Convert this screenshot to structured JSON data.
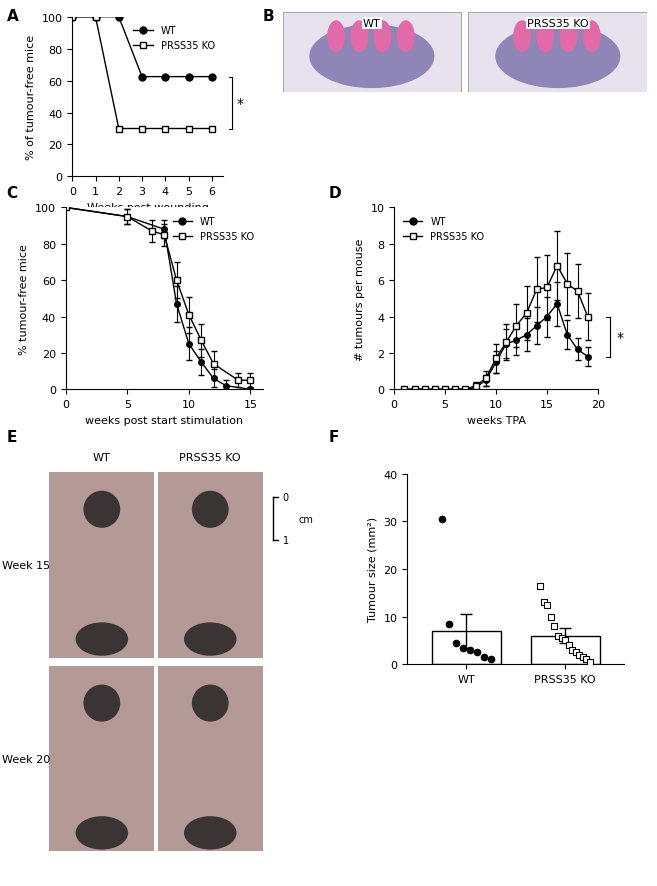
{
  "chart_data": [
    {
      "panel": "A",
      "type": "line",
      "xlabel": "Weeks post wounding",
      "ylabel": "% of tumour-free mice",
      "xlim": [
        0,
        6.5
      ],
      "ylim": [
        0,
        100
      ],
      "xticks": [
        0,
        1,
        2,
        3,
        4,
        5,
        6
      ],
      "yticks": [
        0,
        20,
        40,
        60,
        80,
        100
      ],
      "legend": "upper right",
      "annotations": [
        {
          "text": "*"
        }
      ],
      "series": [
        {
          "name": "WT",
          "color": "#000000",
          "marker": "filled circle",
          "x": [
            0,
            1,
            2,
            3,
            4,
            5,
            6
          ],
          "values": [
            100,
            100,
            100,
            62.5,
            62.5,
            62.5,
            62.5
          ]
        },
        {
          "name": "PRSS35 KO",
          "color": "#000000",
          "marker": "open square",
          "x": [
            0,
            1,
            2,
            3,
            4,
            5,
            6
          ],
          "values": [
            100,
            100,
            30,
            30,
            30,
            30,
            30
          ]
        }
      ]
    },
    {
      "panel": "C",
      "type": "line",
      "xlabel": "weeks post start stimulation",
      "ylabel": "% tumour-free mice",
      "xlim": [
        0,
        16
      ],
      "ylim": [
        0,
        100
      ],
      "xticks": [
        0,
        5,
        10,
        15
      ],
      "yticks": [
        0,
        20,
        40,
        60,
        80,
        100
      ],
      "legend": "upper right",
      "series": [
        {
          "name": "WT",
          "color": "#000000",
          "marker": "filled circle",
          "x": [
            0,
            5,
            8,
            9,
            10,
            11,
            12,
            13,
            15
          ],
          "values": [
            100,
            95,
            88,
            47,
            25,
            15,
            6,
            2,
            0
          ],
          "errors": [
            0,
            4,
            5,
            10,
            9,
            7,
            5,
            3,
            0
          ]
        },
        {
          "name": "PRSS35 KO",
          "color": "#000000",
          "marker": "open square",
          "x": [
            0,
            5,
            7,
            8,
            9,
            10,
            11,
            12,
            14,
            15
          ],
          "values": [
            100,
            95,
            87,
            85,
            60,
            41,
            27,
            14,
            5,
            5
          ],
          "errors": [
            0,
            4,
            6,
            6,
            10,
            10,
            9,
            7,
            4,
            4
          ]
        }
      ]
    },
    {
      "panel": "D",
      "type": "line",
      "xlabel": "weeks TPA",
      "ylabel": "# tumours per mouse",
      "xlim": [
        0,
        20
      ],
      "ylim": [
        0,
        10
      ],
      "xticks": [
        0,
        5,
        10,
        15,
        20
      ],
      "yticks": [
        0,
        2,
        4,
        6,
        8,
        10
      ],
      "legend": "upper left",
      "annotations": [
        {
          "text": "*"
        }
      ],
      "series": [
        {
          "name": "WT",
          "color": "#000000",
          "marker": "filled circle",
          "x": [
            1,
            2,
            3,
            4,
            5,
            6,
            7,
            8,
            9,
            10,
            11,
            12,
            13,
            14,
            15,
            16,
            17,
            18,
            19
          ],
          "values": [
            0,
            0,
            0,
            0,
            0,
            0,
            0,
            0.1,
            0.5,
            1.5,
            2.5,
            2.7,
            3.0,
            3.5,
            4.0,
            4.7,
            3.0,
            2.2,
            1.8
          ],
          "errors": [
            0,
            0,
            0,
            0,
            0,
            0,
            0,
            0.1,
            0.3,
            0.6,
            0.8,
            0.8,
            0.9,
            1.0,
            1.1,
            1.2,
            0.8,
            0.6,
            0.5
          ]
        },
        {
          "name": "PRSS35 KO",
          "color": "#000000",
          "marker": "open square",
          "x": [
            1,
            2,
            3,
            4,
            5,
            6,
            7,
            8,
            9,
            10,
            11,
            12,
            13,
            14,
            15,
            16,
            17,
            18,
            19
          ],
          "values": [
            0,
            0,
            0,
            0,
            0,
            0,
            0,
            0.2,
            0.6,
            1.7,
            2.6,
            3.5,
            4.2,
            5.5,
            5.6,
            6.8,
            5.8,
            5.4,
            4.0
          ],
          "errors": [
            0,
            0,
            0,
            0,
            0,
            0,
            0,
            0.2,
            0.4,
            0.8,
            1.0,
            1.2,
            1.5,
            1.8,
            1.8,
            1.9,
            1.7,
            1.5,
            1.3
          ]
        }
      ]
    },
    {
      "panel": "F",
      "type": "bar",
      "ylabel": "Tumour size (mm²)",
      "categories": [
        "WT",
        "PRSS35 KO"
      ],
      "values": [
        7,
        6
      ],
      "errors": [
        3.5,
        1.5
      ],
      "color": "#ffffff",
      "points": [
        [
          30.5,
          8.5,
          4.5,
          3.5,
          3,
          2.5,
          1.5,
          1
        ],
        [
          16.5,
          13,
          12.5,
          10,
          8,
          6,
          5.5,
          5,
          4,
          3,
          2.5,
          2,
          1.5,
          1,
          0.5
        ]
      ],
      "ylim": [
        0,
        40
      ],
      "yticks": [
        0,
        10,
        20,
        30,
        40
      ]
    }
  ],
  "images": [
    {
      "panel": "B",
      "labels": [
        "WT",
        "PRSS35 KO"
      ]
    },
    {
      "panel": "E",
      "columns": [
        "WT",
        "PRSS35 KO"
      ],
      "rows": [
        "Week 15",
        "Week 20"
      ],
      "scale_bar": {
        "ticks": [
          0,
          1
        ],
        "unit": "cm"
      }
    }
  ]
}
